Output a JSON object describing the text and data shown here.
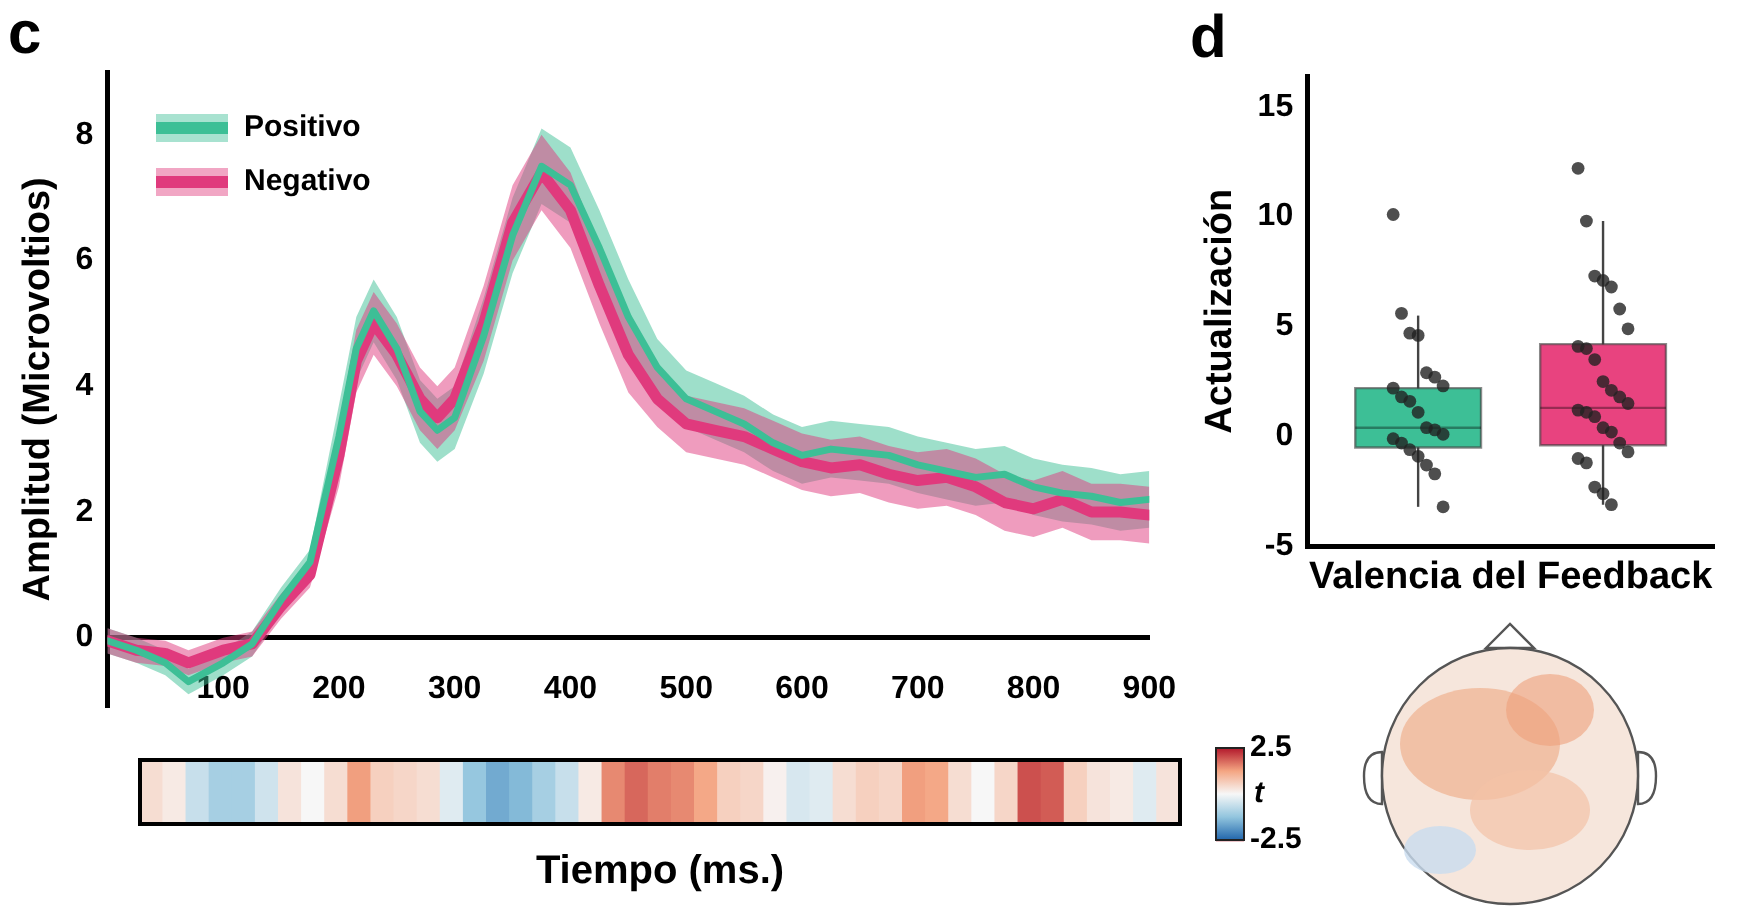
{
  "chart_data": [
    {
      "type": "line",
      "title": "c",
      "ylabel": "Amplitud (Microvoltios)",
      "xlim": [
        0,
        900
      ],
      "xticks": [
        100,
        200,
        300,
        400,
        500,
        600,
        700,
        800,
        900
      ],
      "ylim": [
        -1.1,
        9
      ],
      "yticks": [
        0,
        2,
        4,
        6,
        8
      ],
      "grid": false,
      "legend": "top left",
      "x": [
        0,
        25,
        50,
        70,
        100,
        125,
        150,
        175,
        200,
        215,
        230,
        250,
        270,
        285,
        300,
        325,
        350,
        375,
        400,
        425,
        450,
        475,
        500,
        525,
        550,
        575,
        600,
        625,
        650,
        675,
        700,
        725,
        750,
        775,
        800,
        825,
        850,
        875,
        900
      ],
      "series": [
        {
          "name": "Positivo",
          "color": "#3dbf96",
          "values": [
            -0.05,
            -0.2,
            -0.4,
            -0.7,
            -0.4,
            -0.1,
            0.6,
            1.2,
            3.2,
            4.6,
            5.2,
            4.6,
            3.6,
            3.3,
            3.5,
            4.8,
            6.4,
            7.5,
            7.2,
            6.2,
            5.1,
            4.3,
            3.8,
            3.6,
            3.4,
            3.1,
            2.9,
            3.0,
            2.95,
            2.9,
            2.75,
            2.65,
            2.55,
            2.6,
            2.4,
            2.3,
            2.25,
            2.15,
            2.2
          ],
          "lower": [
            -0.25,
            -0.4,
            -0.6,
            -0.9,
            -0.6,
            -0.3,
            0.4,
            1.0,
            2.7,
            4.1,
            4.7,
            4.1,
            3.1,
            2.8,
            3.0,
            4.2,
            5.8,
            6.9,
            6.6,
            5.6,
            4.5,
            3.85,
            3.35,
            3.15,
            2.95,
            2.65,
            2.45,
            2.55,
            2.5,
            2.45,
            2.3,
            2.2,
            2.1,
            2.15,
            1.95,
            1.85,
            1.8,
            1.7,
            1.75
          ],
          "upper": [
            0.15,
            0,
            -0.2,
            -0.5,
            -0.2,
            0.1,
            0.8,
            1.4,
            3.7,
            5.1,
            5.7,
            5.1,
            4.1,
            3.8,
            4.0,
            5.4,
            7.0,
            8.1,
            7.8,
            6.8,
            5.7,
            4.75,
            4.25,
            4.05,
            3.85,
            3.55,
            3.35,
            3.45,
            3.4,
            3.35,
            3.2,
            3.1,
            3.0,
            3.05,
            2.85,
            2.75,
            2.7,
            2.6,
            2.65
          ]
        },
        {
          "name": "Negativo",
          "color": "#e03a7d",
          "values": [
            -0.05,
            -0.2,
            -0.25,
            -0.4,
            -0.2,
            -0.1,
            0.5,
            1.0,
            2.9,
            4.4,
            5.0,
            4.5,
            3.8,
            3.5,
            3.8,
            5.0,
            6.6,
            7.4,
            6.8,
            5.6,
            4.5,
            3.8,
            3.4,
            3.3,
            3.2,
            3.0,
            2.8,
            2.7,
            2.75,
            2.6,
            2.5,
            2.55,
            2.4,
            2.15,
            2.05,
            2.2,
            2.0,
            2.0,
            1.95
          ],
          "lower": [
            -0.25,
            -0.4,
            -0.45,
            -0.6,
            -0.4,
            -0.3,
            0.3,
            0.8,
            2.4,
            3.9,
            4.5,
            4.0,
            3.3,
            3.0,
            3.3,
            4.4,
            6.0,
            6.8,
            6.2,
            5.0,
            3.9,
            3.35,
            2.95,
            2.85,
            2.75,
            2.55,
            2.35,
            2.25,
            2.3,
            2.15,
            2.05,
            2.1,
            1.95,
            1.7,
            1.6,
            1.75,
            1.55,
            1.55,
            1.5
          ],
          "upper": [
            0.15,
            0,
            -0.05,
            -0.2,
            0,
            0.1,
            0.7,
            1.2,
            3.4,
            4.9,
            5.5,
            5.0,
            4.3,
            4.0,
            4.3,
            5.6,
            7.2,
            8.0,
            7.4,
            6.2,
            5.1,
            4.25,
            3.85,
            3.75,
            3.65,
            3.45,
            3.25,
            3.15,
            3.2,
            3.05,
            2.95,
            3.0,
            2.85,
            2.6,
            2.5,
            2.65,
            2.45,
            2.45,
            2.4
          ]
        }
      ]
    },
    {
      "type": "heatmap",
      "xlabel": "Tiempo (ms.)",
      "clabel": "t",
      "clim": [
        -2.5,
        2.5
      ],
      "cticks": [
        -2.5,
        2.5
      ],
      "y_categories": [
        null
      ],
      "categories": [
        null,
        null,
        null,
        null,
        null,
        null,
        null,
        null,
        null,
        null,
        null,
        null,
        null,
        null,
        null,
        null,
        null,
        null,
        null,
        null,
        null,
        null,
        null,
        null,
        null,
        null,
        null,
        null,
        null,
        null,
        null,
        null,
        null,
        null,
        null,
        null,
        null,
        null,
        null,
        null,
        null,
        null,
        null,
        null,
        null
      ],
      "cells": [
        [
          0.4,
          0.2,
          -0.6,
          -1.0,
          -1.0,
          -0.5,
          0.3,
          0.0,
          0.4,
          1.3,
          0.6,
          0.5,
          0.4,
          -0.3,
          -1.2,
          -1.6,
          -1.4,
          -1.0,
          -0.6,
          0.2,
          1.5,
          1.8,
          1.6,
          1.5,
          1.2,
          0.6,
          0.5,
          0.1,
          -0.4,
          -0.3,
          0.4,
          0.6,
          0.5,
          1.3,
          1.2,
          0.4,
          0.0,
          0.5,
          2.0,
          1.9,
          0.6,
          0.3,
          0.2,
          -0.3,
          0.3
        ]
      ]
    },
    {
      "type": "box",
      "title": "d",
      "xlabel": "Valencia del Feedback",
      "ylabel": "Actualización",
      "categories": [
        null,
        null
      ],
      "colors": [
        "#3dbf96",
        "#e8437f"
      ],
      "ylim": [
        -5,
        16.4
      ],
      "yticks": [
        -5,
        0,
        5,
        10,
        15
      ],
      "grid": false,
      "marker": "circle",
      "boxes": [
        {
          "low": -3.2,
          "q1": -0.5,
          "median": 0.4,
          "q3": 2.2,
          "high": 5.5
        },
        {
          "low": -3.1,
          "q1": -0.4,
          "median": 1.3,
          "q3": 4.2,
          "high": 9.8
        }
      ],
      "series": [
        {
          "type": "scatter",
          "color": "#222222",
          "values": [
            10.1,
            12.2
          ]
        },
        {
          "type": "scatter",
          "color": "#222222",
          "values": [
            5.6,
            9.8
          ]
        },
        {
          "type": "scatter",
          "color": "#222222",
          "values": [
            4.7,
            7.3
          ]
        },
        {
          "type": "scatter",
          "color": "#222222",
          "values": [
            4.6,
            7.1
          ]
        },
        {
          "type": "scatter",
          "color": "#222222",
          "values": [
            2.9,
            6.8
          ]
        },
        {
          "type": "scatter",
          "color": "#222222",
          "values": [
            2.7,
            5.8
          ]
        },
        {
          "type": "scatter",
          "color": "#222222",
          "values": [
            2.3,
            4.9
          ]
        },
        {
          "type": "scatter",
          "color": "#222222",
          "values": [
            2.2,
            4.1
          ]
        },
        {
          "type": "scatter",
          "color": "#222222",
          "values": [
            1.8,
            4.0
          ]
        },
        {
          "type": "scatter",
          "color": "#222222",
          "values": [
            1.6,
            3.5
          ]
        },
        {
          "type": "scatter",
          "color": "#222222",
          "values": [
            1.1,
            2.5
          ]
        },
        {
          "type": "scatter",
          "color": "#222222",
          "values": [
            0.4,
            2.1
          ]
        },
        {
          "type": "scatter",
          "color": "#222222",
          "values": [
            0.3,
            1.8
          ]
        },
        {
          "type": "scatter",
          "color": "#222222",
          "values": [
            0.1,
            1.5
          ]
        },
        {
          "type": "scatter",
          "color": "#222222",
          "values": [
            -0.1,
            1.2
          ]
        },
        {
          "type": "scatter",
          "color": "#222222",
          "values": [
            -0.3,
            1.1
          ]
        },
        {
          "type": "scatter",
          "color": "#222222",
          "values": [
            -0.6,
            0.9
          ]
        },
        {
          "type": "scatter",
          "color": "#222222",
          "values": [
            -0.9,
            0.4
          ]
        },
        {
          "type": "scatter",
          "color": "#222222",
          "values": [
            -1.3,
            0.2
          ]
        },
        {
          "type": "scatter",
          "color": "#222222",
          "values": [
            -1.7,
            -0.3
          ]
        },
        {
          "type": "scatter",
          "color": "#222222",
          "values": [
            -3.2,
            -0.7
          ]
        },
        {
          "type": "scatter",
          "color": "#222222",
          "values": [
            null,
            -1.0
          ]
        },
        {
          "type": "scatter",
          "color": "#222222",
          "values": [
            null,
            -1.2
          ]
        },
        {
          "type": "scatter",
          "color": "#222222",
          "values": [
            null,
            -2.3
          ]
        },
        {
          "type": "scatter",
          "color": "#222222",
          "values": [
            null,
            -2.6
          ]
        },
        {
          "type": "scatter",
          "color": "#222222",
          "values": [
            null,
            -3.1
          ]
        }
      ]
    }
  ]
}
